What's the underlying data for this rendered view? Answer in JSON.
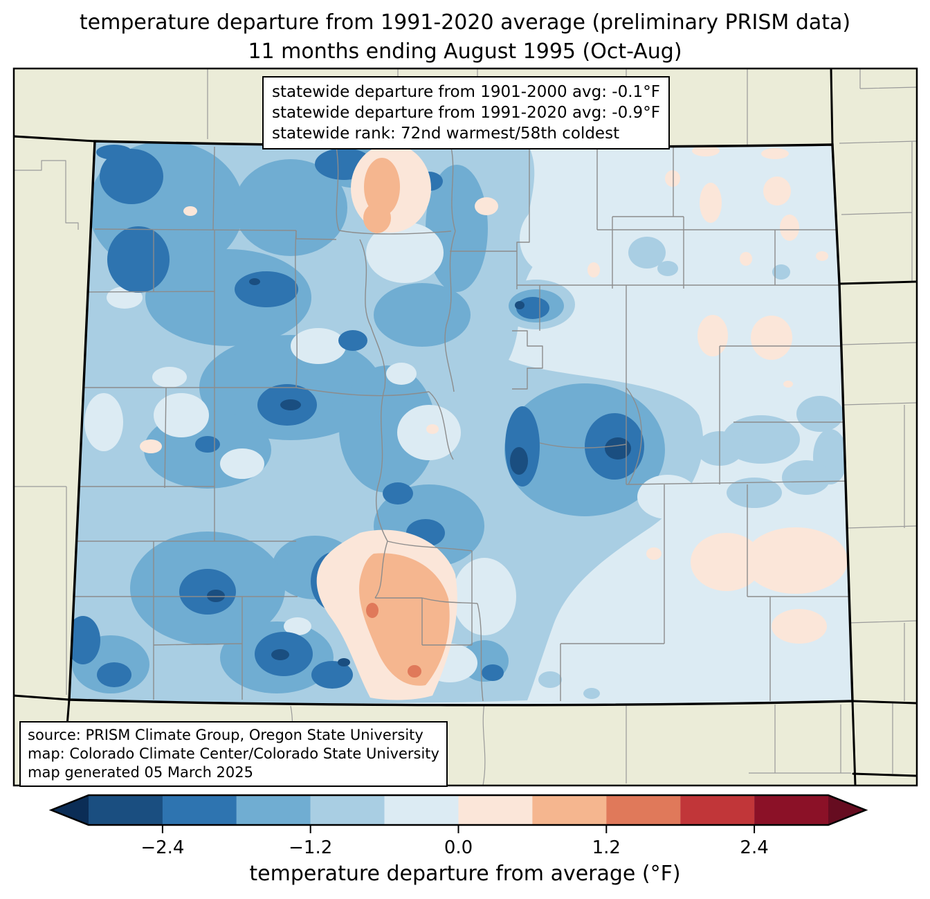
{
  "title": {
    "line1": "temperature departure from 1991-2020 average (preliminary PRISM data)",
    "line2": "11 months ending August 1995 (Oct-Aug)"
  },
  "stats_box": {
    "line1": "statewide departure from 1901-2000 avg: -0.1°F",
    "line2": "statewide departure from 1991-2020 avg: -0.9°F",
    "line3": "statewide rank: 72nd warmest/58th coldest"
  },
  "stats_values": {
    "departure_from_1901_2000_avg_F": -0.1,
    "departure_from_1991_2020_avg_F": -0.9,
    "rank_warmest": "72nd",
    "rank_coldest": "58th"
  },
  "source_box": {
    "line1": "source: PRISM Climate Group, Oregon State University",
    "line2": "map: Colorado Climate Center/Colorado State University",
    "line3": "map generated 05 March 2025"
  },
  "colorbar": {
    "label": "temperature departure from average (°F)",
    "ticks": [
      "−2.4",
      "−1.2",
      "0.0",
      "1.2",
      "2.4"
    ],
    "tick_values": [
      -2.4,
      -1.2,
      0.0,
      1.2,
      2.4
    ],
    "range_F": [
      -3.0,
      3.0
    ],
    "segment_step_F": 0.6,
    "segment_colors": [
      "#1a4e80",
      "#2e74b0",
      "#70add2",
      "#a9cee3",
      "#dcebf3",
      "#fbe6d9",
      "#f5b68f",
      "#e0795a",
      "#c13639",
      "#8b1127"
    ],
    "under_color": "#0b2d56",
    "over_color": "#660c20"
  },
  "map": {
    "region": "Colorado",
    "outside_fill": "#ebecd8",
    "county_line_color": "#8c8c8c",
    "state_border_color": "#000000",
    "frame_color": "#000000"
  }
}
